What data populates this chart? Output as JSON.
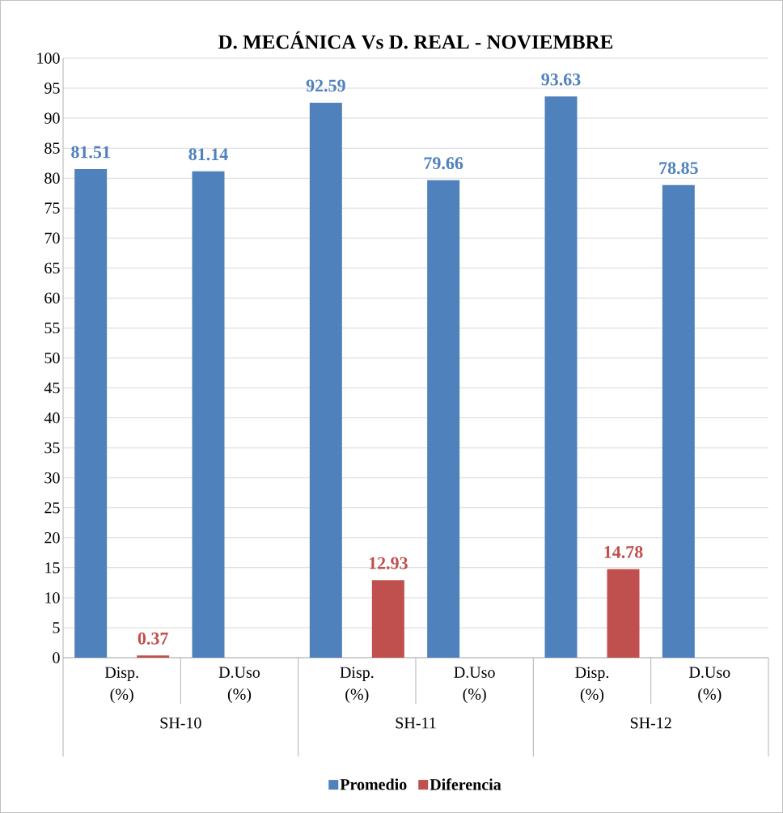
{
  "chart_data": {
    "type": "bar",
    "title": "D. MECÁNICA Vs D. REAL - NOVIEMBRE",
    "categories": [
      "Disp. (%)",
      "D.Uso (%)",
      "Disp. (%)",
      "D.Uso (%)",
      "Disp. (%)",
      "D.Uso (%)"
    ],
    "series": [
      {
        "name": "Promedio",
        "color": "#4f81bd",
        "values": [
          81.51,
          81.14,
          92.59,
          79.66,
          93.63,
          78.85
        ]
      },
      {
        "name": "Diferencia",
        "color": "#c0504d",
        "values": [
          0.37,
          null,
          12.93,
          null,
          14.78,
          null
        ]
      }
    ],
    "annotations": [
      "SH-10",
      "SH-11",
      "SH-12"
    ],
    "ylim": [
      0,
      100
    ],
    "yticks": [
      0,
      5,
      10,
      15,
      20,
      25,
      30,
      35,
      40,
      45,
      50,
      55,
      60,
      65,
      70,
      75,
      80,
      85,
      90,
      95,
      100
    ],
    "grid": "y",
    "legend": "bottom",
    "data_labels": true
  }
}
